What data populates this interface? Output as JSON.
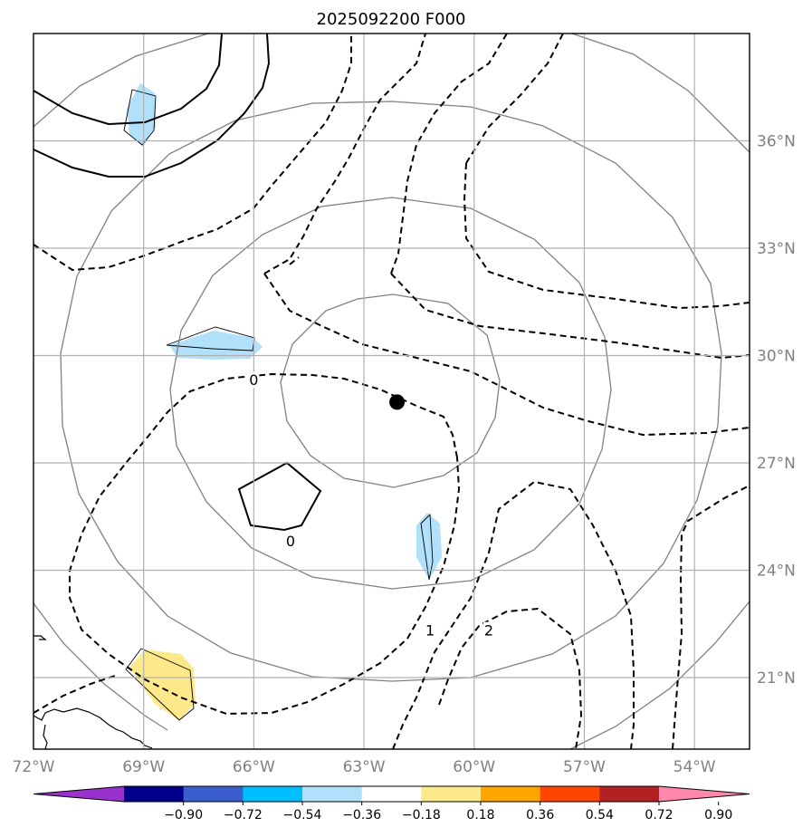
{
  "title": "2025092200 F000",
  "map": {
    "lon_range": [
      -72,
      -52.5
    ],
    "lat_range": [
      19,
      39
    ],
    "lon_ticks": [
      {
        "value": -72,
        "label": "72°W"
      },
      {
        "value": -69,
        "label": "69°W"
      },
      {
        "value": -66,
        "label": "66°W"
      },
      {
        "value": -63,
        "label": "63°W"
      },
      {
        "value": -60,
        "label": "60°W"
      },
      {
        "value": -57,
        "label": "57°W"
      },
      {
        "value": -54,
        "label": "54°W"
      }
    ],
    "lat_ticks": [
      {
        "value": 21,
        "label": "21°N"
      },
      {
        "value": 24,
        "label": "24°N"
      },
      {
        "value": 27,
        "label": "27°N"
      },
      {
        "value": 30,
        "label": "30°N"
      },
      {
        "value": 33,
        "label": "33°N"
      },
      {
        "value": 36,
        "label": "36°N"
      }
    ],
    "storm_center": {
      "lon": -62.1,
      "lat": 28.7
    },
    "contour_labels": [
      {
        "text": "0",
        "lon": -66.0,
        "lat": 29.3
      },
      {
        "text": "0",
        "lon": -65.0,
        "lat": 24.8
      },
      {
        "text": "1",
        "lon": -61.2,
        "lat": 22.3
      },
      {
        "text": "2",
        "lon": -59.6,
        "lat": 22.3
      }
    ]
  },
  "colorbar": {
    "labels": [
      "−0.90",
      "−0.72",
      "−0.54",
      "−0.36",
      "−0.18",
      "0.18",
      "0.36",
      "0.54",
      "0.72",
      "0.90"
    ],
    "colors": [
      "#9932cc",
      "#00008b",
      "#3a5fcd",
      "#00bfff",
      "#b0e0fa",
      "#ffffff",
      "#fde98a",
      "#ffa500",
      "#ff4500",
      "#b22222",
      "#ff88aa"
    ]
  }
}
